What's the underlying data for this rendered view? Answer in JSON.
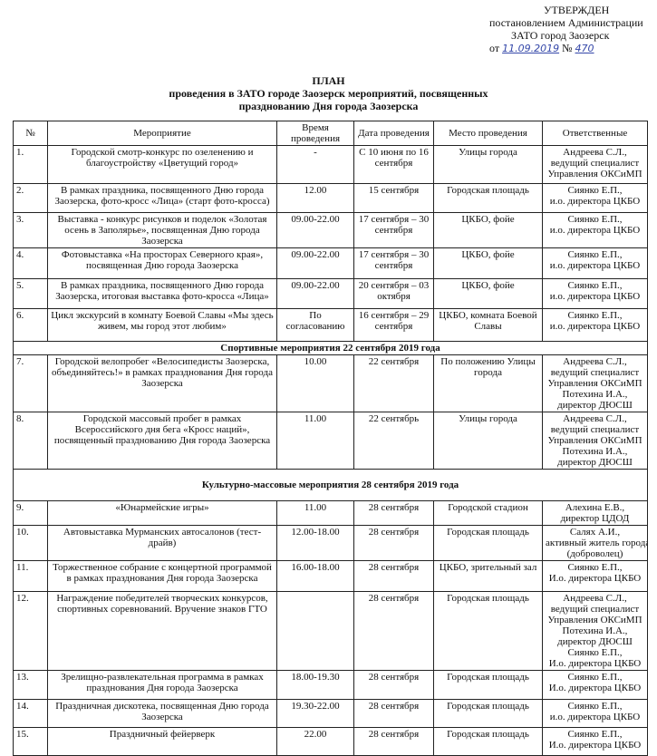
{
  "header": {
    "approved": "УТВЕРЖДЕН",
    "line1": "постановлением Администрации",
    "line2": "ЗАТО город Заозерск",
    "from": "от",
    "date": "11.09.2019",
    "number_sign": "№",
    "number": "470"
  },
  "title": {
    "line1": "ПЛАН",
    "line2": "проведения в ЗАТО городе Заозерск мероприятий, посвященных",
    "line3": "празднованию Дня города Заозерска"
  },
  "table": {
    "columns": [
      "№",
      "Мероприятие",
      "Время проведения",
      "Дата проведения",
      "Место проведения",
      "Ответственные"
    ],
    "rows": [
      {
        "n": "1.",
        "event": "Городской смотр-конкурс по озеленению и благоустройству «Цветущий город»",
        "time": "-",
        "date": "С 10 июня по 16 сентября",
        "place": "Улицы города",
        "resp": [
          "Андреева С.Л.,",
          "ведущий специалист",
          "Управления ОКСиМП"
        ]
      },
      {
        "n": "2.",
        "event": "В рамках праздника, посвященного Дню города Заозерска, фото-кросс «Лица» (старт фото-кросса)",
        "time": "12.00",
        "date": "15 сентября",
        "place": "Городская площадь",
        "resp": [
          "Сиянко Е.П.,",
          "и.о. директора ЦКБО"
        ]
      },
      {
        "n": "3.",
        "event": "Выставка - конкурс рисунков и поделок «Золотая осень в Заполярье», посвященная Дню города Заозерска",
        "time": "09.00-22.00",
        "date": "17 сентября – 30 сентября",
        "place": "ЦКБО, фойе",
        "resp": [
          "Сиянко Е.П.,",
          "и.о. директора ЦКБО"
        ]
      },
      {
        "n": "4.",
        "event": "Фотовыставка «На просторах Северного края», посвященная Дню города Заозерска",
        "time": "09.00-22.00",
        "date": "17 сентября – 30 сентября",
        "place": "ЦКБО, фойе",
        "resp": [
          "Сиянко Е.П.,",
          "и.о. директора ЦКБО"
        ]
      },
      {
        "n": "5.",
        "event": "В рамках праздника, посвященного Дню города Заозерска, итоговая выставка фото-кросса «Лица»",
        "time": "09.00-22.00",
        "date": "20 сентября – 03 октября",
        "place": "ЦКБО, фойе",
        "resp": [
          "Сиянко Е.П.,",
          "и.о. директора ЦКБО"
        ]
      },
      {
        "n": "6.",
        "event": "Цикл экскурсий в комнату Боевой Славы «Мы здесь живем, мы город этот любим»",
        "time": "По согласованию",
        "date": "16 сентября – 29 сентября",
        "place": "ЦКБО, комната Боевой Славы",
        "resp": [
          "Сиянко Е.П.,",
          "и.о. директора ЦКБО"
        ]
      },
      {
        "section": "Спортивные мероприятия 22 сентября 2019 года"
      },
      {
        "n": "7.",
        "event": "Городской велопробег «Велосипедисты Заозерска, объединяйтесь!» в рамках празднования Дня города Заозерска",
        "time": "10.00",
        "date": "22 сентября",
        "place": "По положению Улицы города",
        "resp": [
          "Андреева С.Л.,",
          "ведущий специалист",
          "Управления ОКСиМП",
          "Потехина И.А.,",
          "директор ДЮСШ"
        ]
      },
      {
        "n": "8.",
        "event": "Городской массовый пробег в рамках Всероссийского дня бега «Кросс наций», посвященный празднованию Дня города Заозерска",
        "time": "11.00",
        "date": "22 сентябрь",
        "place": "Улицы города",
        "resp": [
          "Андреева С.Л.,",
          "ведущий специалист",
          "Управления ОКСиМП",
          "Потехина И.А.,",
          "директор ДЮСШ"
        ]
      },
      {
        "section": "Культурно-массовые мероприятия 28 сентября 2019 года"
      },
      {
        "n": "9.",
        "event": "«Юнармейские игры»",
        "time": "11.00",
        "date": "28 сентября",
        "place": "Городской стадион",
        "resp": [
          "Алехина Е.В.,",
          "директор ЦДОД"
        ]
      },
      {
        "n": "10.",
        "event": "Автовыставка Мурманских автосалонов (тест-драйв)",
        "time": "12.00-18.00",
        "date": "28 сентября",
        "place": "Городская площадь",
        "resp": [
          "Салях А.И.,",
          "активный житель города",
          "(доброволец)"
        ]
      },
      {
        "n": "11.",
        "event": "Торжественное собрание с концертной программой в рамках празднования Дня города Заозерска",
        "time": "16.00-18.00",
        "date": "28 сентября",
        "place": "ЦКБО, зрительный зал",
        "resp": [
          "Сиянко Е.П.,",
          "И.о. директора ЦКБО"
        ]
      },
      {
        "n": "12.",
        "event": "Награждение победителей творческих конкурсов, спортивных соревнований. Вручение знаков ГТО",
        "date": "28 сентября",
        "place": "Городская площадь",
        "resp": [
          "Андреева С.Л.,",
          "ведущий специалист",
          "Управления ОКСиМП",
          "Потехина И.А.,",
          "директор ДЮСШ",
          "Сиянко Е.П.,",
          "И.о. директора ЦКБО"
        ]
      },
      {
        "n": "13.",
        "event": "Зрелищно-развлекательная программа в рамках празднования Дня города Заозерска",
        "time": "18.00-19.30",
        "date": "28 сентября",
        "place": "Городская площадь",
        "resp": [
          "Сиянко Е.П.,",
          "И.о. директора ЦКБО"
        ]
      },
      {
        "n": "14.",
        "event": "Праздничная дискотека, посвященная Дню города Заозерска",
        "time": "19.30-22.00",
        "date": "28 сентября",
        "place": "Городская площадь",
        "resp": [
          "Сиянко Е.П.,",
          "и.о. директора ЦКБО"
        ]
      },
      {
        "n": "15.",
        "event": "Праздничный фейерверк",
        "time": "22.00",
        "date": "28 сентября",
        "place": "Городская площадь",
        "resp": [
          "Сиянко Е.П.,",
          "И.о. директора ЦКБО"
        ]
      }
    ]
  }
}
